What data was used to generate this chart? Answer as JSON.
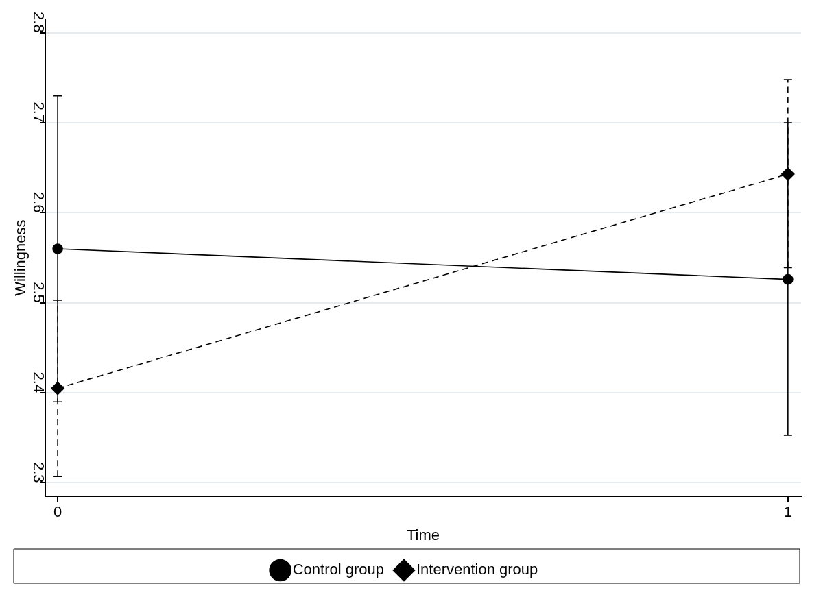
{
  "chart_data": {
    "type": "line",
    "xlabel": "Time",
    "ylabel": "Willingness",
    "x": [
      0,
      1
    ],
    "xlim": [
      -0.017,
      1.018
    ],
    "xticks": [
      0,
      1
    ],
    "ylim": [
      2.285,
      2.815
    ],
    "yticks": [
      2.3,
      2.4,
      2.5,
      2.6,
      2.7,
      2.8
    ],
    "grid": "y",
    "legend": "bottom",
    "series": [
      {
        "name": "Control group",
        "color": "#000000",
        "values": [
          2.56,
          2.526
        ],
        "errors": [
          [
            2.39,
            2.73
          ],
          [
            2.353,
            2.7
          ]
        ],
        "marker": "circle",
        "line_style": "solid"
      },
      {
        "name": "Intervention group",
        "color": "#000000",
        "values": [
          2.405,
          2.643
        ],
        "errors": [
          [
            2.307,
            2.503
          ],
          [
            2.539,
            2.748
          ]
        ],
        "marker": "diamond",
        "line_style": "dashed"
      }
    ]
  }
}
